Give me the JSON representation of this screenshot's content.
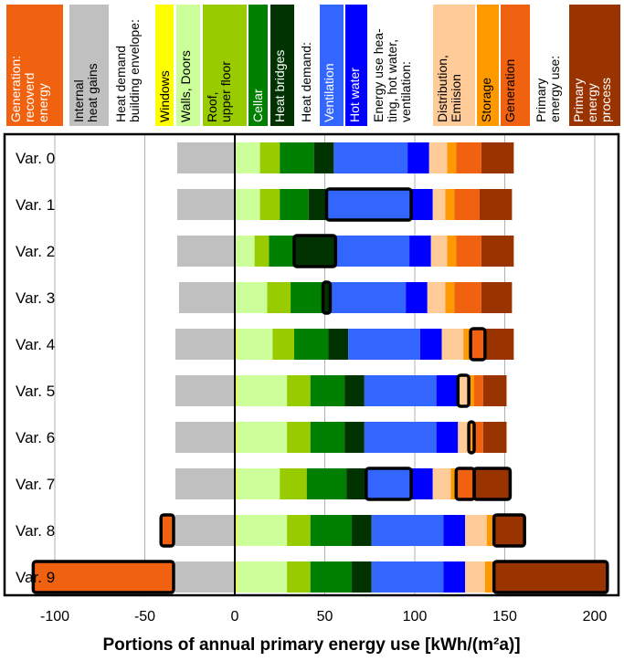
{
  "chart_data": {
    "type": "bar",
    "orientation": "horizontal-stacked",
    "xlabel": "Portions of annual primary energy use [kWh/(m²a)]",
    "xlim": [
      -115,
      210
    ],
    "xticks": [
      "-100",
      "-50",
      "0",
      "50",
      "100",
      "150",
      "200"
    ],
    "xtick_values": [
      -100,
      -50,
      0,
      50,
      100,
      150,
      200
    ],
    "grid": "vertical",
    "categories": [
      "Var. 0",
      "Var. 1",
      "Var. 2",
      "Var. 3",
      "Var. 4",
      "Var. 5",
      "Var. 6",
      "Var. 7",
      "Var. 8",
      "Var. 9"
    ],
    "legend": [
      {
        "key": "gen_recovered",
        "lines": [
          "Generation:",
          "recoverd",
          "energy"
        ],
        "bg": "#f0620f",
        "fg": "#ffffff"
      },
      {
        "key": "internal",
        "lines": [
          "Internal",
          "heat gains"
        ],
        "bg": "#c0c0c0",
        "fg": "#000000"
      },
      {
        "key": "hd_env_header",
        "lines": [
          "Heat demand",
          "building envelope:"
        ],
        "bg": "#ffffff",
        "fg": "#000000"
      },
      {
        "key": "windows",
        "lines": [
          "Windows"
        ],
        "bg": "#ffff00",
        "fg": "#000000"
      },
      {
        "key": "walls",
        "lines": [
          "Walls, Doors"
        ],
        "bg": "#ccff99",
        "fg": "#000000"
      },
      {
        "key": "roof",
        "lines": [
          "Roof,",
          "upper floor"
        ],
        "bg": "#99cc00",
        "fg": "#000000"
      },
      {
        "key": "cellar",
        "lines": [
          "Cellar"
        ],
        "bg": "#008000",
        "fg": "#ffffff"
      },
      {
        "key": "bridges",
        "lines": [
          "Heat bridges"
        ],
        "bg": "#003300",
        "fg": "#ffffff"
      },
      {
        "key": "hd_header",
        "lines": [
          "Heat demand:"
        ],
        "bg": "#ffffff",
        "fg": "#000000"
      },
      {
        "key": "ventilation",
        "lines": [
          "Ventilation"
        ],
        "bg": "#3366ff",
        "fg": "#ffffff"
      },
      {
        "key": "hotwater",
        "lines": [
          "Hot water"
        ],
        "bg": "#0000ff",
        "fg": "#ffffff"
      },
      {
        "key": "eu_header",
        "lines": [
          "Energy use hea-",
          "ting, hot water,",
          "ventilation:"
        ],
        "bg": "#ffffff",
        "fg": "#000000"
      },
      {
        "key": "distribution",
        "lines": [
          "Distribution,",
          "Emiision"
        ],
        "bg": "#ffcc99",
        "fg": "#000000"
      },
      {
        "key": "storage",
        "lines": [
          "Storage"
        ],
        "bg": "#ff9900",
        "fg": "#000000"
      },
      {
        "key": "generation",
        "lines": [
          "Generation"
        ],
        "bg": "#f0620f",
        "fg": "#000000"
      },
      {
        "key": "pe_header",
        "lines": [
          "Primary",
          "energy use:"
        ],
        "bg": "#ffffff",
        "fg": "#000000"
      },
      {
        "key": "process",
        "lines": [
          "Primary",
          "energy",
          "process"
        ],
        "bg": "#993300",
        "fg": "#ffffff"
      }
    ],
    "series_colors": {
      "gen_recovered": "#f0620f",
      "internal": "#c0c0c0",
      "windows": "#ffff00",
      "walls": "#ccff99",
      "roof": "#99cc00",
      "cellar": "#008000",
      "bridges": "#003300",
      "ventilation": "#3366ff",
      "hotwater": "#0000ff",
      "distribution": "#ffcc99",
      "storage": "#ff9900",
      "generation": "#f0620f",
      "process": "#993300"
    },
    "order": [
      "walls",
      "roof",
      "cellar",
      "bridges",
      "ventilation",
      "hotwater",
      "distribution",
      "storage",
      "generation",
      "process"
    ],
    "rows": [
      {
        "gen_recovered": 0,
        "internal": 32,
        "windows": 0,
        "walls": 14,
        "roof": 11,
        "cellar": 19,
        "bridges": 11,
        "ventilation": 41,
        "hotwater": 12,
        "distribution": 10,
        "storage": 5,
        "generation": 14,
        "process": 18,
        "highlight": []
      },
      {
        "gen_recovered": 0,
        "internal": 32,
        "windows": 0,
        "walls": 14,
        "roof": 11,
        "cellar": 16,
        "bridges": 10,
        "ventilation": 47,
        "hotwater": 12,
        "distribution": 7,
        "storage": 5,
        "generation": 14,
        "process": 18,
        "highlight": [
          "ventilation"
        ]
      },
      {
        "gen_recovered": 0,
        "internal": 32,
        "windows": 0,
        "walls": 11,
        "roof": 8,
        "cellar": 14,
        "bridges": 23,
        "ventilation": 41,
        "hotwater": 12,
        "distribution": 9,
        "storage": 5,
        "generation": 14,
        "process": 18,
        "highlight": [
          "bridges"
        ]
      },
      {
        "gen_recovered": 0,
        "internal": 31,
        "windows": 0,
        "walls": 18,
        "roof": 13,
        "cellar": 18,
        "bridges": 4,
        "ventilation": 42,
        "hotwater": 12,
        "distribution": 10,
        "storage": 5,
        "generation": 15,
        "process": 17,
        "highlight": [
          "bridges"
        ]
      },
      {
        "gen_recovered": 0,
        "internal": 33,
        "windows": 1,
        "walls": 20,
        "roof": 12,
        "cellar": 19,
        "bridges": 11,
        "ventilation": 40,
        "hotwater": 12,
        "distribution": 12,
        "storage": 4,
        "generation": 8,
        "process": 16,
        "highlight": [
          "generation"
        ]
      },
      {
        "gen_recovered": 0,
        "internal": 33,
        "windows": 1,
        "walls": 28,
        "roof": 13,
        "cellar": 19,
        "bridges": 11,
        "ventilation": 40,
        "hotwater": 12,
        "distribution": 6,
        "storage": 3,
        "generation": 5,
        "process": 13,
        "highlight": [
          "distribution"
        ]
      },
      {
        "gen_recovered": 0,
        "internal": 33,
        "windows": 1,
        "walls": 28,
        "roof": 13,
        "cellar": 19,
        "bridges": 11,
        "ventilation": 40,
        "hotwater": 12,
        "distribution": 6,
        "storage": 3,
        "generation": 5,
        "process": 13,
        "highlight": [
          "storage"
        ]
      },
      {
        "gen_recovered": 0,
        "internal": 33,
        "windows": 1,
        "walls": 24,
        "roof": 15,
        "cellar": 22,
        "bridges": 11,
        "ventilation": 25,
        "hotwater": 12,
        "distribution": 10,
        "storage": 3,
        "generation": 10,
        "process": 20,
        "highlight": [
          "ventilation",
          "generation",
          "process"
        ]
      },
      {
        "gen_recovered": 8,
        "internal": 33,
        "windows": 1,
        "walls": 28,
        "roof": 13,
        "cellar": 23,
        "bridges": 11,
        "ventilation": 40,
        "hotwater": 12,
        "distribution": 12,
        "storage": 3,
        "generation": 1,
        "process": 17,
        "highlight": [
          "gen_recovered",
          "process"
        ]
      },
      {
        "gen_recovered": 79,
        "internal": 33,
        "windows": 1,
        "walls": 28,
        "roof": 13,
        "cellar": 23,
        "bridges": 11,
        "ventilation": 40,
        "hotwater": 12,
        "distribution": 11,
        "storage": 4,
        "generation": 1,
        "process": 63,
        "highlight": [
          "gen_recovered",
          "process"
        ]
      }
    ]
  }
}
